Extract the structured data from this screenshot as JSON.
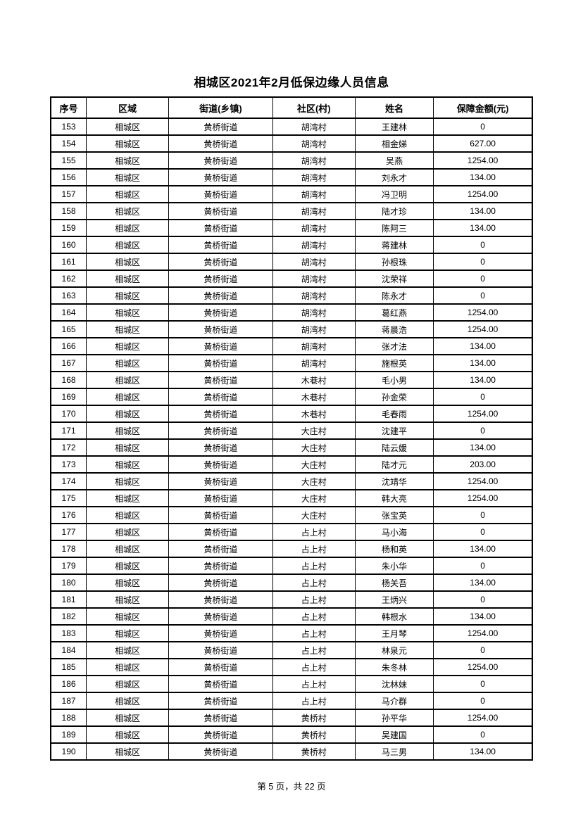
{
  "page": {
    "title": "相城区2021年2月低保边缘人员信息",
    "footer": {
      "text": "第 5 页，共 22 页",
      "current_page": 5,
      "total_pages": 22
    }
  },
  "table": {
    "columns": [
      "序号",
      "区域",
      "街道(乡镇)",
      "社区(村)",
      "姓名",
      "保障金额(元)"
    ],
    "rows": [
      [
        "153",
        "相城区",
        "黄桥街道",
        "胡湾村",
        "王建林",
        "0"
      ],
      [
        "154",
        "相城区",
        "黄桥街道",
        "胡湾村",
        "相金娣",
        "627.00"
      ],
      [
        "155",
        "相城区",
        "黄桥街道",
        "胡湾村",
        "吴燕",
        "1254.00"
      ],
      [
        "156",
        "相城区",
        "黄桥街道",
        "胡湾村",
        "刘永才",
        "134.00"
      ],
      [
        "157",
        "相城区",
        "黄桥街道",
        "胡湾村",
        "冯卫明",
        "1254.00"
      ],
      [
        "158",
        "相城区",
        "黄桥街道",
        "胡湾村",
        "陆才珍",
        "134.00"
      ],
      [
        "159",
        "相城区",
        "黄桥街道",
        "胡湾村",
        "陈阿三",
        "134.00"
      ],
      [
        "160",
        "相城区",
        "黄桥街道",
        "胡湾村",
        "蒋建林",
        "0"
      ],
      [
        "161",
        "相城区",
        "黄桥街道",
        "胡湾村",
        "孙根珠",
        "0"
      ],
      [
        "162",
        "相城区",
        "黄桥街道",
        "胡湾村",
        "沈荣祥",
        "0"
      ],
      [
        "163",
        "相城区",
        "黄桥街道",
        "胡湾村",
        "陈永才",
        "0"
      ],
      [
        "164",
        "相城区",
        "黄桥街道",
        "胡湾村",
        "葛红燕",
        "1254.00"
      ],
      [
        "165",
        "相城区",
        "黄桥街道",
        "胡湾村",
        "蒋晨浩",
        "1254.00"
      ],
      [
        "166",
        "相城区",
        "黄桥街道",
        "胡湾村",
        "张才法",
        "134.00"
      ],
      [
        "167",
        "相城区",
        "黄桥街道",
        "胡湾村",
        "施根英",
        "134.00"
      ],
      [
        "168",
        "相城区",
        "黄桥街道",
        "木巷村",
        "毛小男",
        "134.00"
      ],
      [
        "169",
        "相城区",
        "黄桥街道",
        "木巷村",
        "孙金荣",
        "0"
      ],
      [
        "170",
        "相城区",
        "黄桥街道",
        "木巷村",
        "毛春雨",
        "1254.00"
      ],
      [
        "171",
        "相城区",
        "黄桥街道",
        "大庄村",
        "沈建平",
        "0"
      ],
      [
        "172",
        "相城区",
        "黄桥街道",
        "大庄村",
        "陆云媛",
        "134.00"
      ],
      [
        "173",
        "相城区",
        "黄桥街道",
        "大庄村",
        "陆才元",
        "203.00"
      ],
      [
        "174",
        "相城区",
        "黄桥街道",
        "大庄村",
        "沈靖华",
        "1254.00"
      ],
      [
        "175",
        "相城区",
        "黄桥街道",
        "大庄村",
        "韩大亮",
        "1254.00"
      ],
      [
        "176",
        "相城区",
        "黄桥街道",
        "大庄村",
        "张宝英",
        "0"
      ],
      [
        "177",
        "相城区",
        "黄桥街道",
        "占上村",
        "马小海",
        "0"
      ],
      [
        "178",
        "相城区",
        "黄桥街道",
        "占上村",
        "杨和英",
        "134.00"
      ],
      [
        "179",
        "相城区",
        "黄桥街道",
        "占上村",
        "朱小华",
        "0"
      ],
      [
        "180",
        "相城区",
        "黄桥街道",
        "占上村",
        "杨关吾",
        "134.00"
      ],
      [
        "181",
        "相城区",
        "黄桥街道",
        "占上村",
        "王炳兴",
        "0"
      ],
      [
        "182",
        "相城区",
        "黄桥街道",
        "占上村",
        "韩根水",
        "134.00"
      ],
      [
        "183",
        "相城区",
        "黄桥街道",
        "占上村",
        "王月琴",
        "1254.00"
      ],
      [
        "184",
        "相城区",
        "黄桥街道",
        "占上村",
        "林泉元",
        "0"
      ],
      [
        "185",
        "相城区",
        "黄桥街道",
        "占上村",
        "朱冬林",
        "1254.00"
      ],
      [
        "186",
        "相城区",
        "黄桥街道",
        "占上村",
        "沈林妹",
        "0"
      ],
      [
        "187",
        "相城区",
        "黄桥街道",
        "占上村",
        "马介群",
        "0"
      ],
      [
        "188",
        "相城区",
        "黄桥街道",
        "黄桥村",
        "孙平华",
        "1254.00"
      ],
      [
        "189",
        "相城区",
        "黄桥街道",
        "黄桥村",
        "吴建国",
        "0"
      ],
      [
        "190",
        "相城区",
        "黄桥街道",
        "黄桥村",
        "马三男",
        "134.00"
      ]
    ]
  }
}
